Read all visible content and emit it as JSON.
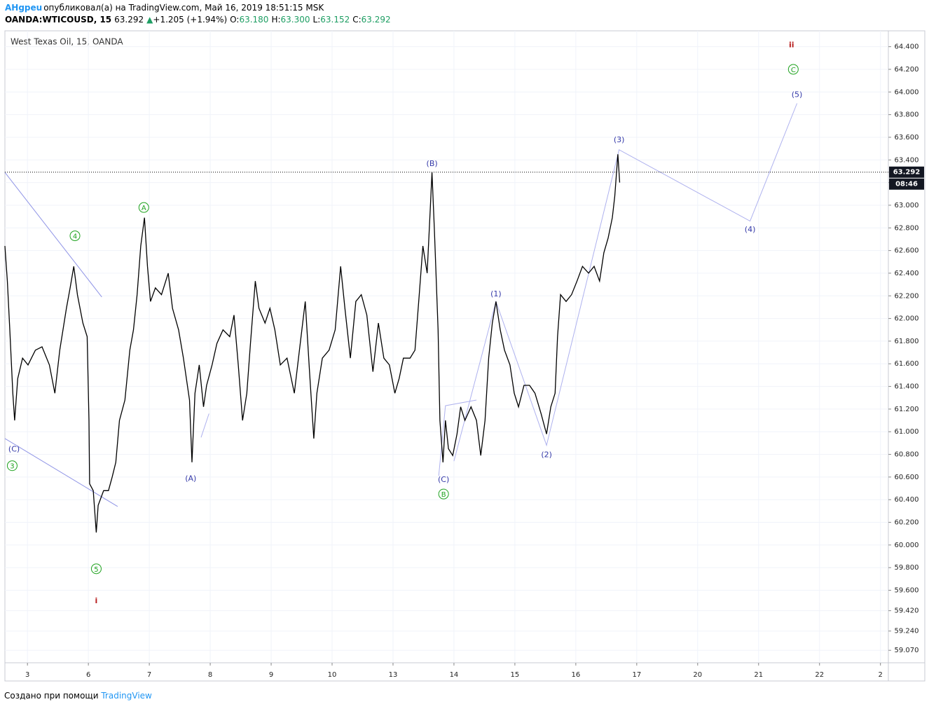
{
  "header": {
    "author": "AHgpeu",
    "published": "опубликовал(а) на TradingView.com, Май 16, 2019 18:51:15 MSK",
    "symbol": "OANDA:WTICOUSD, 15",
    "price": "63.292",
    "change_arrow": "▲",
    "change": "+1.205 (+1.94%)",
    "open_label": "O:",
    "open": "63.180",
    "high_label": "H:",
    "high": "63.300",
    "low_label": "L:",
    "low": "63.152",
    "close_label": "C:",
    "close": "63.292"
  },
  "chart_data": {
    "type": "line",
    "title": "West Texas Oil, 15, OANDA",
    "grid": true,
    "series": [
      {
        "name": "WTICOUSD",
        "color": "#000000",
        "x": [
          -0.37,
          -0.33,
          -0.29,
          -0.24,
          -0.21,
          -0.16,
          -0.08,
          0.01,
          0.13,
          0.24,
          0.36,
          0.45,
          0.53,
          0.64,
          0.7,
          0.76,
          0.82,
          0.91,
          0.98,
          1.01,
          1.02,
          1.08,
          1.13,
          1.16,
          1.25,
          1.33,
          1.39,
          1.45,
          1.51,
          1.6,
          1.68,
          1.74,
          1.8,
          1.86,
          1.92,
          1.97,
          2.02,
          2.1,
          2.2,
          2.31,
          2.38,
          2.48,
          2.56,
          2.66,
          2.7,
          2.75,
          2.82,
          2.89,
          2.94,
          3.03,
          3.11,
          3.21,
          3.32,
          3.39,
          3.46,
          3.53,
          3.6,
          3.66,
          3.74,
          3.8,
          3.9,
          3.98,
          4.06,
          4.15,
          4.26,
          4.38,
          4.49,
          4.56,
          4.63,
          4.7,
          4.75,
          4.84,
          4.95,
          5.05,
          5.14,
          5.21,
          5.3,
          5.39,
          5.48,
          5.57,
          5.67,
          5.76,
          5.85,
          5.94,
          6.03,
          6.1,
          6.17,
          6.28,
          6.36,
          6.43,
          6.49,
          6.56,
          6.61,
          6.64,
          6.68,
          6.74,
          6.77,
          6.82,
          6.86,
          6.91,
          6.98,
          7.05,
          7.11,
          7.18,
          7.28,
          7.37,
          7.44,
          7.51,
          7.57,
          7.63,
          7.69,
          7.76,
          7.83,
          7.92,
          7.99,
          8.06,
          8.15,
          8.24,
          8.33,
          8.43,
          8.52,
          8.59,
          8.66,
          8.7,
          8.75,
          8.84,
          8.93,
          9.02,
          9.11,
          9.21,
          9.3,
          9.39,
          9.46,
          9.53,
          9.6,
          9.64,
          9.69,
          9.72
        ],
        "values": [
          62.64,
          62.33,
          61.9,
          61.34,
          61.1,
          61.47,
          61.65,
          61.59,
          61.72,
          61.75,
          61.59,
          61.34,
          61.72,
          62.09,
          62.27,
          62.46,
          62.21,
          61.96,
          61.84,
          61.1,
          60.54,
          60.48,
          60.11,
          60.35,
          60.48,
          60.48,
          60.6,
          60.73,
          61.1,
          61.28,
          61.72,
          61.9,
          62.21,
          62.64,
          62.89,
          62.46,
          62.15,
          62.27,
          62.21,
          62.4,
          62.09,
          61.9,
          61.65,
          61.28,
          60.73,
          61.34,
          61.59,
          61.22,
          61.41,
          61.59,
          61.78,
          61.9,
          61.84,
          62.03,
          61.59,
          61.1,
          61.34,
          61.78,
          62.33,
          62.09,
          61.96,
          62.09,
          61.9,
          61.59,
          61.65,
          61.34,
          61.84,
          62.15,
          61.53,
          60.94,
          61.34,
          61.65,
          61.72,
          61.9,
          62.46,
          62.09,
          61.65,
          62.15,
          62.21,
          62.03,
          61.53,
          61.96,
          61.65,
          61.59,
          61.34,
          61.47,
          61.65,
          61.65,
          61.72,
          62.21,
          62.64,
          62.4,
          62.95,
          63.29,
          62.77,
          61.9,
          61.1,
          60.73,
          61.1,
          60.85,
          60.79,
          60.98,
          61.22,
          61.1,
          61.22,
          61.1,
          60.79,
          61.1,
          61.65,
          61.96,
          62.15,
          61.9,
          61.72,
          61.59,
          61.34,
          61.22,
          61.41,
          61.41,
          61.34,
          61.16,
          60.98,
          61.22,
          61.34,
          61.84,
          62.21,
          62.15,
          62.21,
          62.33,
          62.46,
          62.4,
          62.46,
          62.33,
          62.58,
          62.71,
          62.89,
          63.08,
          63.45,
          63.2
        ]
      }
    ],
    "drawings": [
      {
        "color": "#8f94e6",
        "x": [
          -0.37,
          1.22
        ],
        "y": [
          63.29,
          62.19
        ]
      },
      {
        "color": "#8f94e6",
        "x": [
          -0.37,
          1.48
        ],
        "y": [
          60.94,
          60.34
        ]
      },
      {
        "color": "#aeb1ee",
        "x": [
          2.85,
          2.98
        ],
        "y": [
          60.95,
          61.16
        ]
      },
      {
        "color": "#aeb1ee",
        "x": [
          6.75,
          6.86,
          7.37
        ],
        "y": [
          60.61,
          61.23,
          61.28
        ]
      },
      {
        "color": "#aeb1ee",
        "x": [
          7.0,
          7.69,
          8.52,
          9.71,
          11.86,
          12.63
        ],
        "y": [
          60.74,
          62.15,
          60.88,
          63.49,
          62.86,
          63.9
        ]
      }
    ],
    "annotations": [
      {
        "text": "(C)",
        "x": -0.22,
        "y": 60.85,
        "color": "#3338a8"
      },
      {
        "text": "3",
        "x": -0.25,
        "y": 60.7,
        "color": "#1ea21e",
        "shape": "circle"
      },
      {
        "text": "4",
        "x": 0.78,
        "y": 62.73,
        "color": "#1ea21e",
        "shape": "circle"
      },
      {
        "text": "5",
        "x": 1.13,
        "y": 59.79,
        "color": "#1ea21e",
        "shape": "circle"
      },
      {
        "text": "i",
        "x": 1.13,
        "y": 59.51,
        "color": "#b71c1c"
      },
      {
        "text": "A",
        "x": 1.91,
        "y": 62.98,
        "color": "#1ea21e",
        "shape": "circle"
      },
      {
        "text": "(A)",
        "x": 2.68,
        "y": 60.59,
        "color": "#3338a8"
      },
      {
        "text": "(B)",
        "x": 6.64,
        "y": 63.37,
        "color": "#3338a8"
      },
      {
        "text": "(C)",
        "x": 6.83,
        "y": 60.58,
        "color": "#3338a8"
      },
      {
        "text": "B",
        "x": 6.83,
        "y": 60.45,
        "color": "#1ea21e",
        "shape": "circle"
      },
      {
        "text": "(1)",
        "x": 7.69,
        "y": 62.22,
        "color": "#3338a8"
      },
      {
        "text": "(2)",
        "x": 8.52,
        "y": 60.8,
        "color": "#3338a8"
      },
      {
        "text": "(3)",
        "x": 9.71,
        "y": 63.58,
        "color": "#3338a8"
      },
      {
        "text": "(4)",
        "x": 11.86,
        "y": 62.79,
        "color": "#3338a8"
      },
      {
        "text": "(5)",
        "x": 12.63,
        "y": 63.98,
        "color": "#3338a8"
      },
      {
        "text": "C",
        "x": 12.57,
        "y": 64.2,
        "color": "#1ea21e",
        "shape": "circle"
      },
      {
        "text": "ii",
        "x": 12.54,
        "y": 64.42,
        "color": "#b71c1c"
      }
    ],
    "last_price": {
      "value": 63.292,
      "label": "63.292"
    },
    "countdown": "08:46",
    "xlim": [
      -0.37,
      14.13
    ],
    "xticks": [
      {
        "value": 0,
        "label": "3"
      },
      {
        "value": 1,
        "label": "6"
      },
      {
        "value": 2,
        "label": "7"
      },
      {
        "value": 3,
        "label": "8"
      },
      {
        "value": 4,
        "label": "9"
      },
      {
        "value": 5,
        "label": "10"
      },
      {
        "value": 6,
        "label": "13"
      },
      {
        "value": 7,
        "label": "14"
      },
      {
        "value": 8,
        "label": "15"
      },
      {
        "value": 9,
        "label": "16"
      },
      {
        "value": 10,
        "label": "17"
      },
      {
        "value": 11,
        "label": "20"
      },
      {
        "value": 12,
        "label": "21"
      },
      {
        "value": 13,
        "label": "22"
      },
      {
        "value": 14,
        "label": "2"
      }
    ],
    "ylim": [
      58.96,
      64.54
    ],
    "yticks": [
      {
        "value": 59.07,
        "label": "59.070"
      },
      {
        "value": 59.24,
        "label": "59.240"
      },
      {
        "value": 59.42,
        "label": "59.420"
      },
      {
        "value": 59.6,
        "label": "59.600"
      },
      {
        "value": 59.8,
        "label": "59.800"
      },
      {
        "value": 60,
        "label": "60.000"
      },
      {
        "value": 60.2,
        "label": "60.200"
      },
      {
        "value": 60.4,
        "label": "60.400"
      },
      {
        "value": 60.6,
        "label": "60.600"
      },
      {
        "value": 60.8,
        "label": "60.800"
      },
      {
        "value": 61,
        "label": "61.000"
      },
      {
        "value": 61.2,
        "label": "61.200"
      },
      {
        "value": 61.4,
        "label": "61.400"
      },
      {
        "value": 61.6,
        "label": "61.600"
      },
      {
        "value": 61.8,
        "label": "61.800"
      },
      {
        "value": 62,
        "label": "62.000"
      },
      {
        "value": 62.2,
        "label": "62.200"
      },
      {
        "value": 62.4,
        "label": "62.400"
      },
      {
        "value": 62.6,
        "label": "62.600"
      },
      {
        "value": 62.8,
        "label": "62.800"
      },
      {
        "value": 63,
        "label": "63.000"
      },
      {
        "value": 63.2,
        "label": "63.200"
      },
      {
        "value": 63.4,
        "label": "63.400"
      },
      {
        "value": 63.6,
        "label": "63.600"
      },
      {
        "value": 63.8,
        "label": "63.800"
      },
      {
        "value": 64,
        "label": "64.000"
      },
      {
        "value": 64.2,
        "label": "64.200"
      },
      {
        "value": 64.4,
        "label": "64.400"
      }
    ]
  },
  "footer": {
    "made_with": "Создано при помощи",
    "brand": "TradingView"
  }
}
